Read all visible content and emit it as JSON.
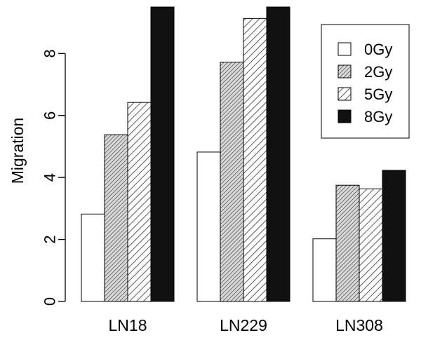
{
  "chart_data": {
    "type": "bar",
    "title": "",
    "xlabel": "",
    "ylabel": "Migration",
    "ylim": [
      0,
      9.5
    ],
    "yticks": [
      0,
      2,
      4,
      6,
      8
    ],
    "categories": [
      "LN18",
      "LN229",
      "LN308"
    ],
    "series": [
      {
        "name": "0Gy",
        "values": [
          2.82,
          4.82,
          2.02
        ],
        "fill": "#ffffff",
        "pattern": "none"
      },
      {
        "name": "2Gy",
        "values": [
          5.38,
          7.72,
          3.75
        ],
        "fill": "#d9d9d9",
        "pattern": "dense-hatch"
      },
      {
        "name": "5Gy",
        "values": [
          6.42,
          9.13,
          3.63
        ],
        "fill": "#ffffff",
        "pattern": "sparse-hatch"
      },
      {
        "name": "8Gy",
        "values": [
          9.5,
          9.5,
          4.23
        ],
        "fill": "#111111",
        "pattern": "solid"
      }
    ],
    "grid": false,
    "legend_position": "top-right"
  }
}
